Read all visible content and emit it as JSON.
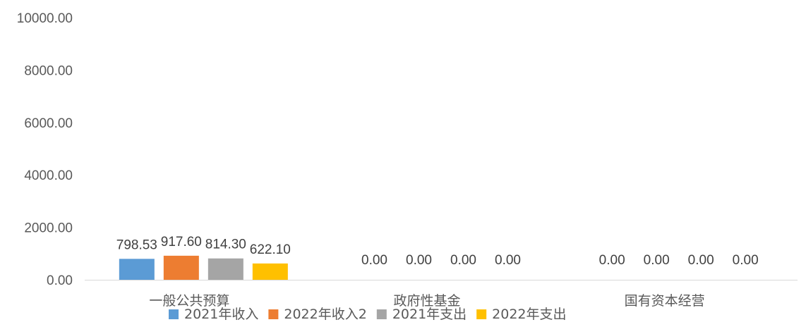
{
  "chart_data": {
    "type": "bar",
    "categories": [
      "一般公共预算",
      "政府性基金",
      "国有资本经营"
    ],
    "series": [
      {
        "name": "2021年收入",
        "values": [
          798.53,
          0.0,
          0.0
        ],
        "color": "#5B9BD5"
      },
      {
        "name": "2022年收入2",
        "values": [
          917.6,
          0.0,
          0.0
        ],
        "color": "#ED7D31"
      },
      {
        "name": "2021年支出",
        "values": [
          814.3,
          0.0,
          0.0
        ],
        "color": "#A5A5A5"
      },
      {
        "name": "2022年支出",
        "values": [
          622.1,
          0.0,
          0.0
        ],
        "color": "#FFC000"
      }
    ],
    "y_ticks": [
      "0.00",
      "2000.00",
      "4000.00",
      "6000.00",
      "8000.00",
      "10000.00"
    ],
    "ylim": [
      0,
      10000
    ],
    "data_labels": [
      [
        "798.53",
        "0.00",
        "0.00"
      ],
      [
        "917.60",
        "0.00",
        "0.00"
      ],
      [
        "814.30",
        "0.00",
        "0.00"
      ],
      [
        "622.10",
        "0.00",
        "0.00"
      ]
    ],
    "legend_position": "bottom",
    "grid": false
  }
}
